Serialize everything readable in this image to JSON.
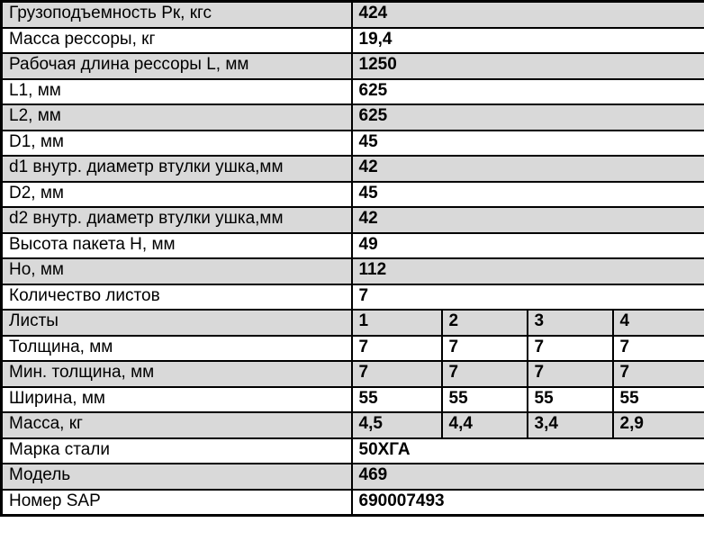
{
  "colors": {
    "shaded_row": "#d9d9d9",
    "plain_row": "#ffffff",
    "grid_border": "#000000",
    "text": "#000000"
  },
  "table": {
    "rows": [
      {
        "label": "Грузоподъемность Рк, кгс",
        "values": [
          "424"
        ]
      },
      {
        "label": "Масса рессоры, кг",
        "values": [
          "19,4"
        ]
      },
      {
        "label": "Рабочая длина рессоры L, мм",
        "values": [
          "1250"
        ]
      },
      {
        "label": "L1, мм",
        "values": [
          "625"
        ]
      },
      {
        "label": "L2, мм",
        "values": [
          "625"
        ]
      },
      {
        "label": "D1, мм",
        "values": [
          "45"
        ]
      },
      {
        "label": "d1 внутр. диаметр втулки ушка,мм",
        "values": [
          "42"
        ]
      },
      {
        "label": "D2, мм",
        "values": [
          "45"
        ]
      },
      {
        "label": "d2 внутр. диаметр втулки ушка,мм",
        "values": [
          "42"
        ]
      },
      {
        "label": "Высота пакета Н, мм",
        "values": [
          "49"
        ]
      },
      {
        "label": "Но, мм",
        "values": [
          "112"
        ]
      },
      {
        "label": "Количество листов",
        "values": [
          "7"
        ]
      },
      {
        "label": "Листы",
        "values": [
          "1",
          "2",
          "3",
          "4"
        ]
      },
      {
        "label": "Толщина, мм",
        "values": [
          "7",
          "7",
          "7",
          "7"
        ]
      },
      {
        "label": "Мин. толщина, мм",
        "values": [
          "7",
          "7",
          "7",
          "7"
        ]
      },
      {
        "label": "Ширина, мм",
        "values": [
          "55",
          "55",
          "55",
          "55"
        ]
      },
      {
        "label": "Масса, кг",
        "values": [
          "4,5",
          "4,4",
          "3,4",
          "2,9"
        ]
      },
      {
        "label": "Марка стали",
        "values": [
          "50ХГА"
        ]
      },
      {
        "label": "Модель",
        "values": [
          "469"
        ]
      },
      {
        "label": "Номер SAP",
        "values": [
          "690007493"
        ]
      }
    ]
  }
}
